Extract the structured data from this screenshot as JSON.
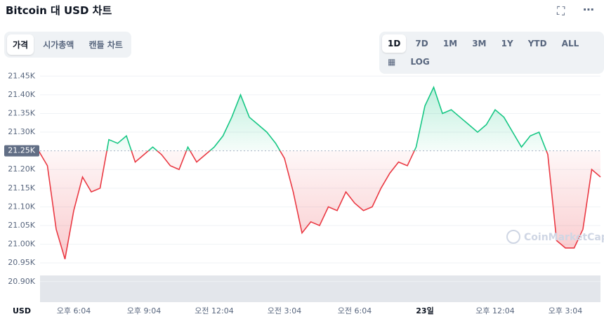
{
  "ui": {
    "title": "Bitcoin 대 USD 차트",
    "tabs": [
      "가격",
      "시가총액",
      "캔들 차트"
    ],
    "ranges": [
      "1D",
      "7D",
      "1M",
      "3M",
      "1Y",
      "YTD",
      "ALL"
    ],
    "log": "LOG"
  },
  "chart_data": {
    "type": "line",
    "y_label": "USD",
    "watermark": "CoinMarketCap",
    "categories": [
      null,
      null,
      null,
      null,
      "오후 6:04",
      null,
      null,
      null,
      null,
      null,
      null,
      null,
      "오후 9:04",
      null,
      null,
      null,
      null,
      null,
      null,
      null,
      "오전 12:04",
      null,
      null,
      null,
      null,
      null,
      null,
      null,
      "오전 3:04",
      null,
      null,
      null,
      null,
      null,
      null,
      null,
      "오전 6:04",
      null,
      null,
      null,
      null,
      null,
      null,
      null,
      "23일",
      null,
      null,
      null,
      null,
      null,
      null,
      null,
      "오후 12:04",
      null,
      null,
      null,
      null,
      null,
      null,
      null,
      "오후 3:04",
      null,
      null,
      null,
      null
    ],
    "values": [
      21250,
      21210,
      21040,
      20960,
      21090,
      21180,
      21140,
      21150,
      21280,
      21270,
      21290,
      21220,
      21240,
      21260,
      21240,
      21210,
      21200,
      21260,
      21220,
      21240,
      21260,
      21290,
      21340,
      21400,
      21340,
      21320,
      21300,
      21270,
      21230,
      21140,
      21030,
      21060,
      21050,
      21100,
      21090,
      21140,
      21110,
      21090,
      21100,
      21150,
      21190,
      21220,
      21210,
      21260,
      21370,
      21420,
      21350,
      21360,
      21340,
      21320,
      21300,
      21320,
      21360,
      21340,
      21300,
      21260,
      21290,
      21300,
      21240,
      21010,
      20990,
      20990,
      21040,
      21200,
      21180
    ],
    "up_color": "#16c784",
    "down_color": "#ea3943",
    "baseline": {
      "value": 21250,
      "label": "21.25K"
    },
    "ylim": [
      20845,
      21475
    ],
    "yticks": [
      {
        "value": 20900,
        "label": "20.90K"
      },
      {
        "value": 20950,
        "label": "20.95K"
      },
      {
        "value": 21000,
        "label": "21.00K"
      },
      {
        "value": 21050,
        "label": "21.05K"
      },
      {
        "value": 21100,
        "label": "21.10K"
      },
      {
        "value": 21150,
        "label": "21.15K"
      },
      {
        "value": 21200,
        "label": "21.20K"
      },
      {
        "value": 21300,
        "label": "21.30K"
      },
      {
        "value": 21350,
        "label": "21.35K"
      },
      {
        "value": 21400,
        "label": "21.40K"
      },
      {
        "value": 21450,
        "label": "21.45K"
      }
    ],
    "grid": true
  }
}
